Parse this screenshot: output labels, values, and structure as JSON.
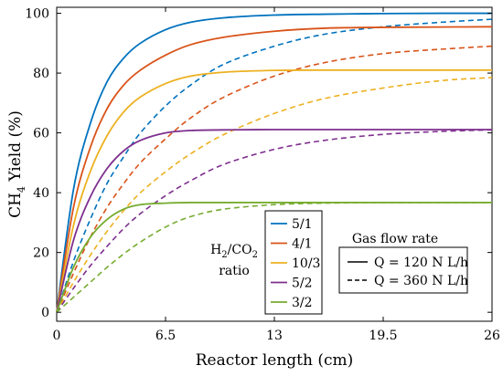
{
  "chart_data": {
    "type": "line",
    "xlabel": "Reactor length (cm)",
    "ylabel_main": "CH",
    "ylabel_sub": "4",
    "ylabel_rest": " Yield (%)",
    "xlim": [
      0,
      26
    ],
    "ylim": [
      -3,
      102
    ],
    "xticks": [
      0,
      6.5,
      13,
      19.5,
      26
    ],
    "xtick_labels": [
      "0",
      "6.5",
      "13",
      "19.5",
      "26"
    ],
    "yticks": [
      0,
      20,
      40,
      60,
      80,
      100
    ],
    "ytick_labels": [
      "0",
      "20",
      "40",
      "60",
      "80",
      "100"
    ],
    "grid": false,
    "ratio_legend": {
      "title_line1_a": "H",
      "title_line1_b": "2",
      "title_line1_c": "/CO",
      "title_line1_d": "2",
      "title_line2": "ratio",
      "position": "bottom-center"
    },
    "flow_legend": {
      "title": "Gas flow rate",
      "solid_label": "Q = 120 N L/h",
      "dashed_label": "Q = 360 N L/h",
      "position": "bottom-right"
    },
    "series": [
      {
        "name": "5/1",
        "color": "#0072BD",
        "solid": {
          "x": [
            0,
            1,
            2,
            3,
            4,
            5,
            6.5,
            8,
            10,
            13,
            16,
            19.5,
            23,
            26
          ],
          "y": [
            0,
            41,
            63,
            77,
            85,
            90,
            94.5,
            97,
            98.5,
            99.4,
            99.7,
            99.9,
            100,
            100
          ]
        },
        "dashed": {
          "x": [
            0,
            1,
            2,
            3,
            4,
            5,
            6.5,
            8,
            10,
            13,
            16,
            19.5,
            23,
            26
          ],
          "y": [
            0,
            17,
            31,
            43,
            52,
            60,
            69,
            76,
            83,
            89,
            93,
            95.5,
            97,
            98
          ]
        }
      },
      {
        "name": "4/1",
        "color": "#D95319",
        "solid": {
          "x": [
            0,
            1,
            2,
            3,
            4,
            5,
            6.5,
            8,
            10,
            13,
            16,
            19.5,
            23,
            26
          ],
          "y": [
            0,
            35,
            55,
            68,
            76,
            81,
            86,
            89.5,
            92,
            94,
            95,
            95.3,
            95.4,
            95.5
          ]
        },
        "dashed": {
          "x": [
            0,
            1,
            2,
            3,
            4,
            5,
            6.5,
            8,
            10,
            13,
            16,
            19.5,
            23,
            26
          ],
          "y": [
            0,
            13,
            25,
            35,
            43,
            50,
            58,
            65,
            72,
            79,
            83.5,
            86.5,
            88,
            89
          ]
        }
      },
      {
        "name": "10/3",
        "color": "#EDB120",
        "solid": {
          "x": [
            0,
            1,
            2,
            3,
            4,
            5,
            6.5,
            8,
            10,
            13,
            16,
            19.5,
            23,
            26
          ],
          "y": [
            0,
            29,
            47,
            59,
            67,
            72,
            76.5,
            79,
            80.3,
            80.9,
            81,
            81,
            81,
            81
          ]
        },
        "dashed": {
          "x": [
            0,
            1,
            2,
            3,
            4,
            5,
            6.5,
            8,
            10,
            13,
            16,
            19.5,
            23,
            26
          ],
          "y": [
            0,
            10,
            19,
            27,
            34,
            40,
            47,
            53,
            59.5,
            66.5,
            71.5,
            75,
            77.5,
            78.5
          ]
        }
      },
      {
        "name": "5/2",
        "color": "#7E2F8E",
        "solid": {
          "x": [
            0,
            1,
            2,
            3,
            4,
            5,
            6.5,
            8,
            10,
            13,
            16,
            19.5,
            23,
            26
          ],
          "y": [
            0,
            24,
            38.5,
            48,
            54,
            57.5,
            60,
            60.8,
            61,
            61.1,
            61.1,
            61.1,
            61.1,
            61.1
          ]
        },
        "dashed": {
          "x": [
            0,
            1,
            2,
            3,
            4,
            5,
            6.5,
            8,
            10,
            13,
            16,
            19.5,
            23,
            26
          ],
          "y": [
            0,
            8,
            15.5,
            22,
            28,
            33,
            39,
            44,
            49.5,
            54.5,
            57.5,
            59.5,
            60.5,
            61
          ]
        }
      },
      {
        "name": "3/2",
        "color": "#77AC30",
        "solid": {
          "x": [
            0,
            1,
            2,
            3,
            4,
            5,
            6.5,
            8,
            10,
            13,
            16,
            19.5,
            23,
            26
          ],
          "y": [
            0,
            15,
            25,
            31,
            34.5,
            36,
            36.5,
            36.7,
            36.7,
            36.7,
            36.7,
            36.7,
            36.7,
            36.7
          ]
        },
        "dashed": {
          "x": [
            0,
            1,
            2,
            3,
            4,
            5,
            6.5,
            8,
            10,
            13,
            16,
            19.5,
            23,
            26
          ],
          "y": [
            0,
            5,
            10,
            15,
            19.5,
            23.5,
            28.5,
            32,
            34.5,
            36,
            36.5,
            36.7,
            36.7,
            36.7
          ]
        }
      }
    ]
  }
}
